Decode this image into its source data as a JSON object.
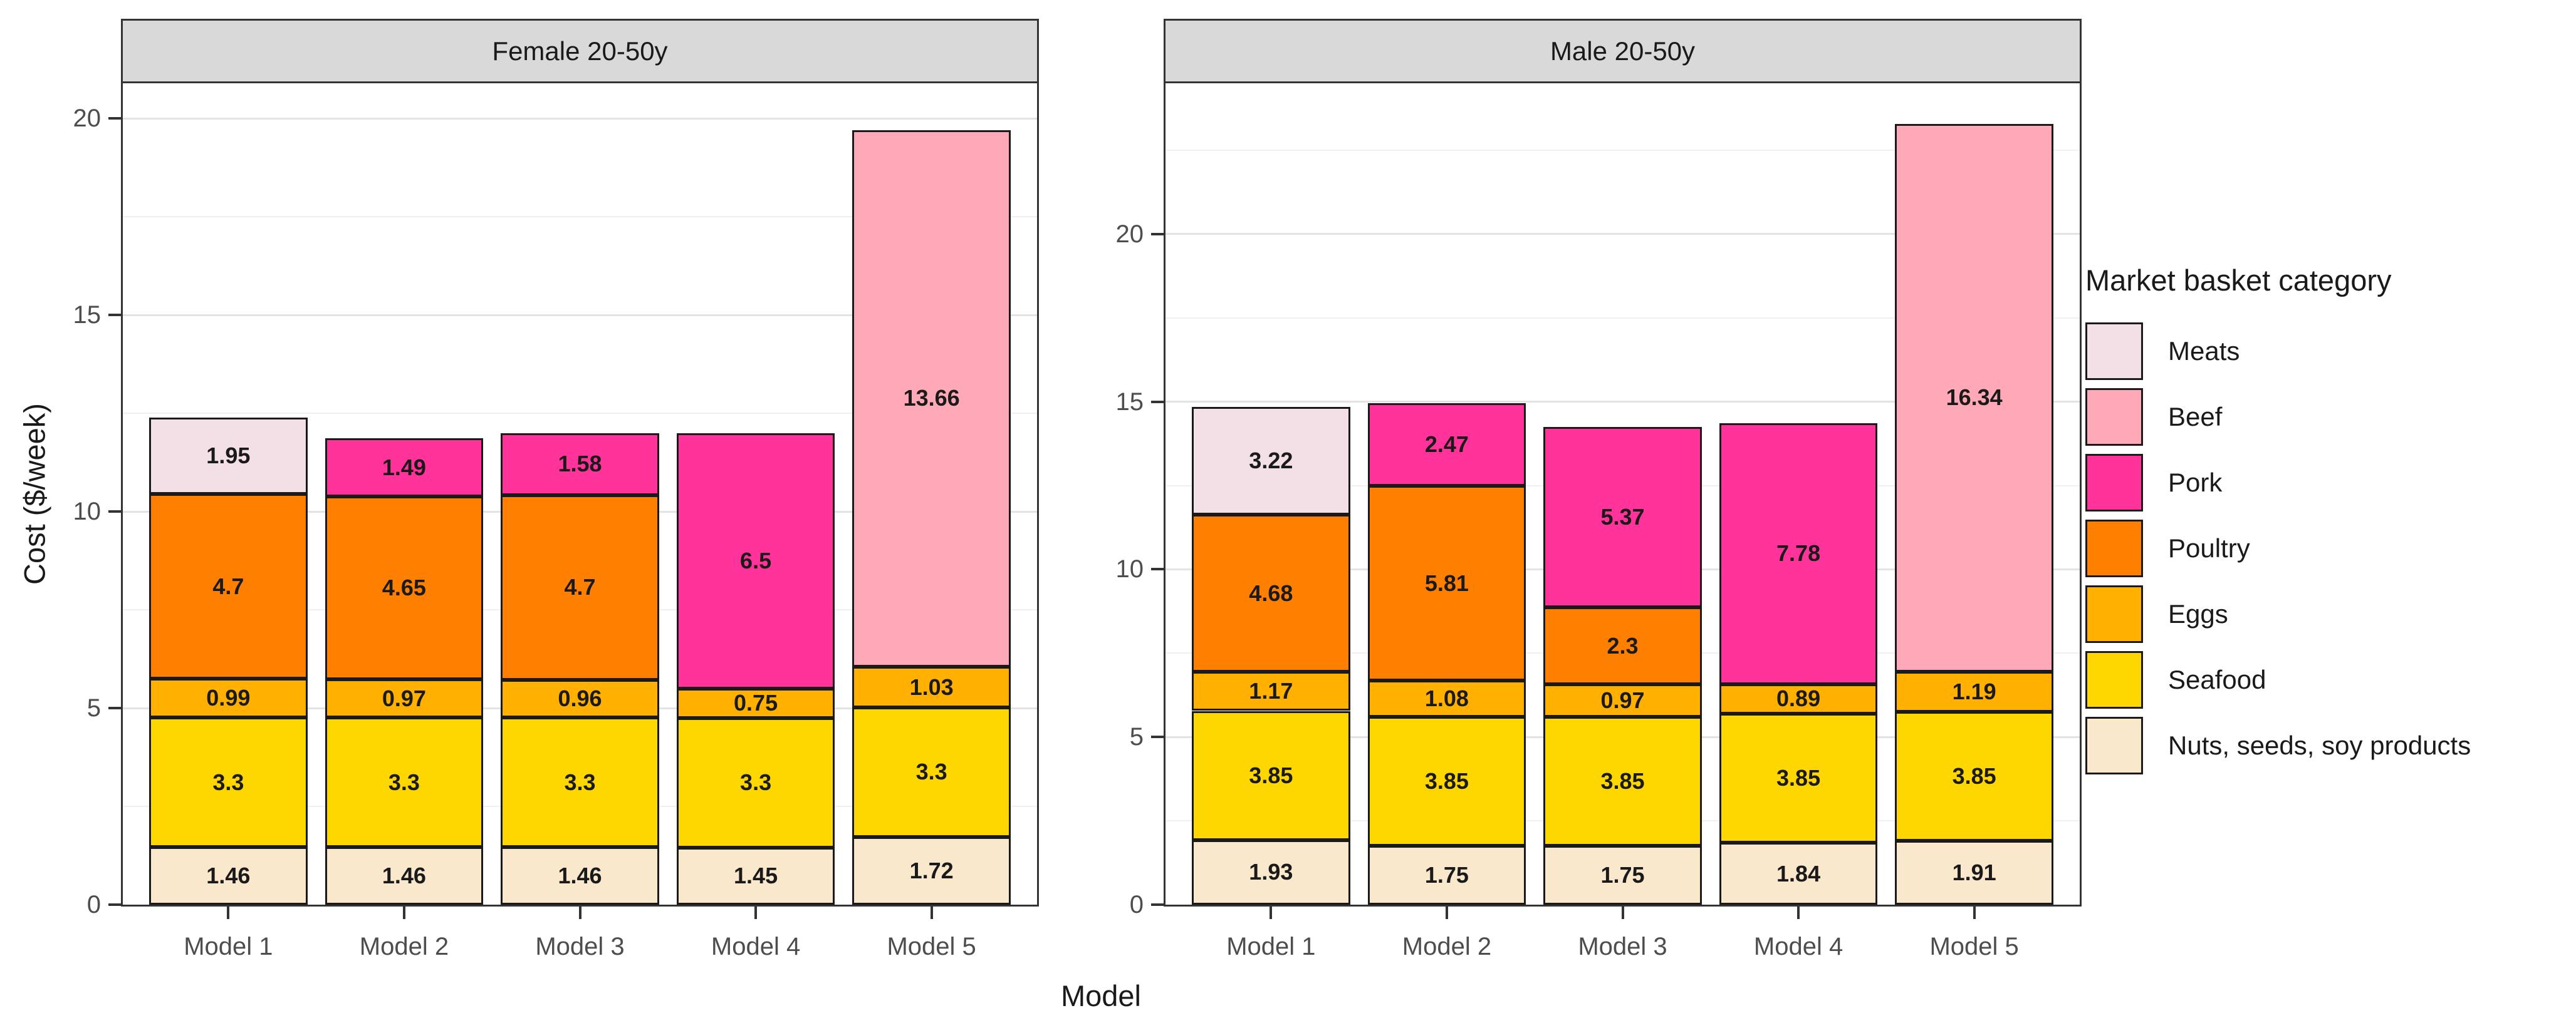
{
  "chart_data": {
    "type": "bar",
    "stacked": true,
    "grid": true,
    "xlabel": "Model",
    "ylabel": "Cost ($/week)",
    "categories": [
      "Model 1",
      "Model 2",
      "Model 3",
      "Model 4",
      "Model 5"
    ],
    "legend": {
      "title": "Market basket category",
      "position": "right",
      "entries": [
        {
          "label": "Meats",
          "color": "#F2E0E6"
        },
        {
          "label": "Beef",
          "color": "#FFA9B8"
        },
        {
          "label": "Pork",
          "color": "#FF3399"
        },
        {
          "label": "Poultry",
          "color": "#FF7F00"
        },
        {
          "label": "Eggs",
          "color": "#FFB000"
        },
        {
          "label": "Seafood",
          "color": "#FFD700"
        },
        {
          "label": "Nuts, seeds, soy products",
          "color": "#FAE8CC"
        }
      ]
    },
    "stack_order_bottom_to_top": [
      "Nuts, seeds, soy products",
      "Seafood",
      "Eggs",
      "Poultry",
      "Pork",
      "Beef",
      "Meats"
    ],
    "facets": [
      {
        "title": "Female 20-50y",
        "ylim": [
          0,
          20.9
        ],
        "yticks": [
          0,
          5,
          10,
          15,
          20
        ],
        "minor_step": 2.5,
        "bars": [
          {
            "model": "Model 1",
            "segments": [
              {
                "category": "Nuts, seeds, soy products",
                "value": 1.46
              },
              {
                "category": "Seafood",
                "value": 3.3
              },
              {
                "category": "Eggs",
                "value": 0.99
              },
              {
                "category": "Poultry",
                "value": 4.7
              },
              {
                "category": "Meats",
                "value": 1.95
              }
            ]
          },
          {
            "model": "Model 2",
            "segments": [
              {
                "category": "Nuts, seeds, soy products",
                "value": 1.46
              },
              {
                "category": "Seafood",
                "value": 3.3
              },
              {
                "category": "Eggs",
                "value": 0.97
              },
              {
                "category": "Poultry",
                "value": 4.65
              },
              {
                "category": "Pork",
                "value": 1.49
              }
            ]
          },
          {
            "model": "Model 3",
            "segments": [
              {
                "category": "Nuts, seeds, soy products",
                "value": 1.46
              },
              {
                "category": "Seafood",
                "value": 3.3
              },
              {
                "category": "Eggs",
                "value": 0.96
              },
              {
                "category": "Poultry",
                "value": 4.7
              },
              {
                "category": "Pork",
                "value": 1.58
              }
            ]
          },
          {
            "model": "Model 4",
            "segments": [
              {
                "category": "Nuts, seeds, soy products",
                "value": 1.45
              },
              {
                "category": "Seafood",
                "value": 3.3
              },
              {
                "category": "Eggs",
                "value": 0.75
              },
              {
                "category": "Pork",
                "value": 6.5
              }
            ]
          },
          {
            "model": "Model 5",
            "segments": [
              {
                "category": "Nuts, seeds, soy products",
                "value": 1.72
              },
              {
                "category": "Seafood",
                "value": 3.3
              },
              {
                "category": "Eggs",
                "value": 1.03
              },
              {
                "category": "Beef",
                "value": 13.66
              }
            ]
          }
        ]
      },
      {
        "title": "Male 20-50y",
        "ylim": [
          0,
          24.5
        ],
        "yticks": [
          0,
          5,
          10,
          15,
          20
        ],
        "minor_step": 2.5,
        "bars": [
          {
            "model": "Model 1",
            "segments": [
              {
                "category": "Nuts, seeds, soy products",
                "value": 1.93
              },
              {
                "category": "Seafood",
                "value": 3.85
              },
              {
                "category": "Eggs",
                "value": 1.17
              },
              {
                "category": "Poultry",
                "value": 4.68
              },
              {
                "category": "Meats",
                "value": 3.22
              }
            ]
          },
          {
            "model": "Model 2",
            "segments": [
              {
                "category": "Nuts, seeds, soy products",
                "value": 1.75
              },
              {
                "category": "Seafood",
                "value": 3.85
              },
              {
                "category": "Eggs",
                "value": 1.08
              },
              {
                "category": "Poultry",
                "value": 5.81
              },
              {
                "category": "Pork",
                "value": 2.47
              }
            ]
          },
          {
            "model": "Model 3",
            "segments": [
              {
                "category": "Nuts, seeds, soy products",
                "value": 1.75
              },
              {
                "category": "Seafood",
                "value": 3.85
              },
              {
                "category": "Eggs",
                "value": 0.97
              },
              {
                "category": "Poultry",
                "value": 2.3
              },
              {
                "category": "Pork",
                "value": 5.37
              }
            ]
          },
          {
            "model": "Model 4",
            "segments": [
              {
                "category": "Nuts, seeds, soy products",
                "value": 1.84
              },
              {
                "category": "Seafood",
                "value": 3.85
              },
              {
                "category": "Eggs",
                "value": 0.89
              },
              {
                "category": "Pork",
                "value": 7.78
              }
            ]
          },
          {
            "model": "Model 5",
            "segments": [
              {
                "category": "Nuts, seeds, soy products",
                "value": 1.91
              },
              {
                "category": "Seafood",
                "value": 3.85
              },
              {
                "category": "Eggs",
                "value": 1.19
              },
              {
                "category": "Beef",
                "value": 16.34
              }
            ]
          }
        ]
      }
    ]
  }
}
